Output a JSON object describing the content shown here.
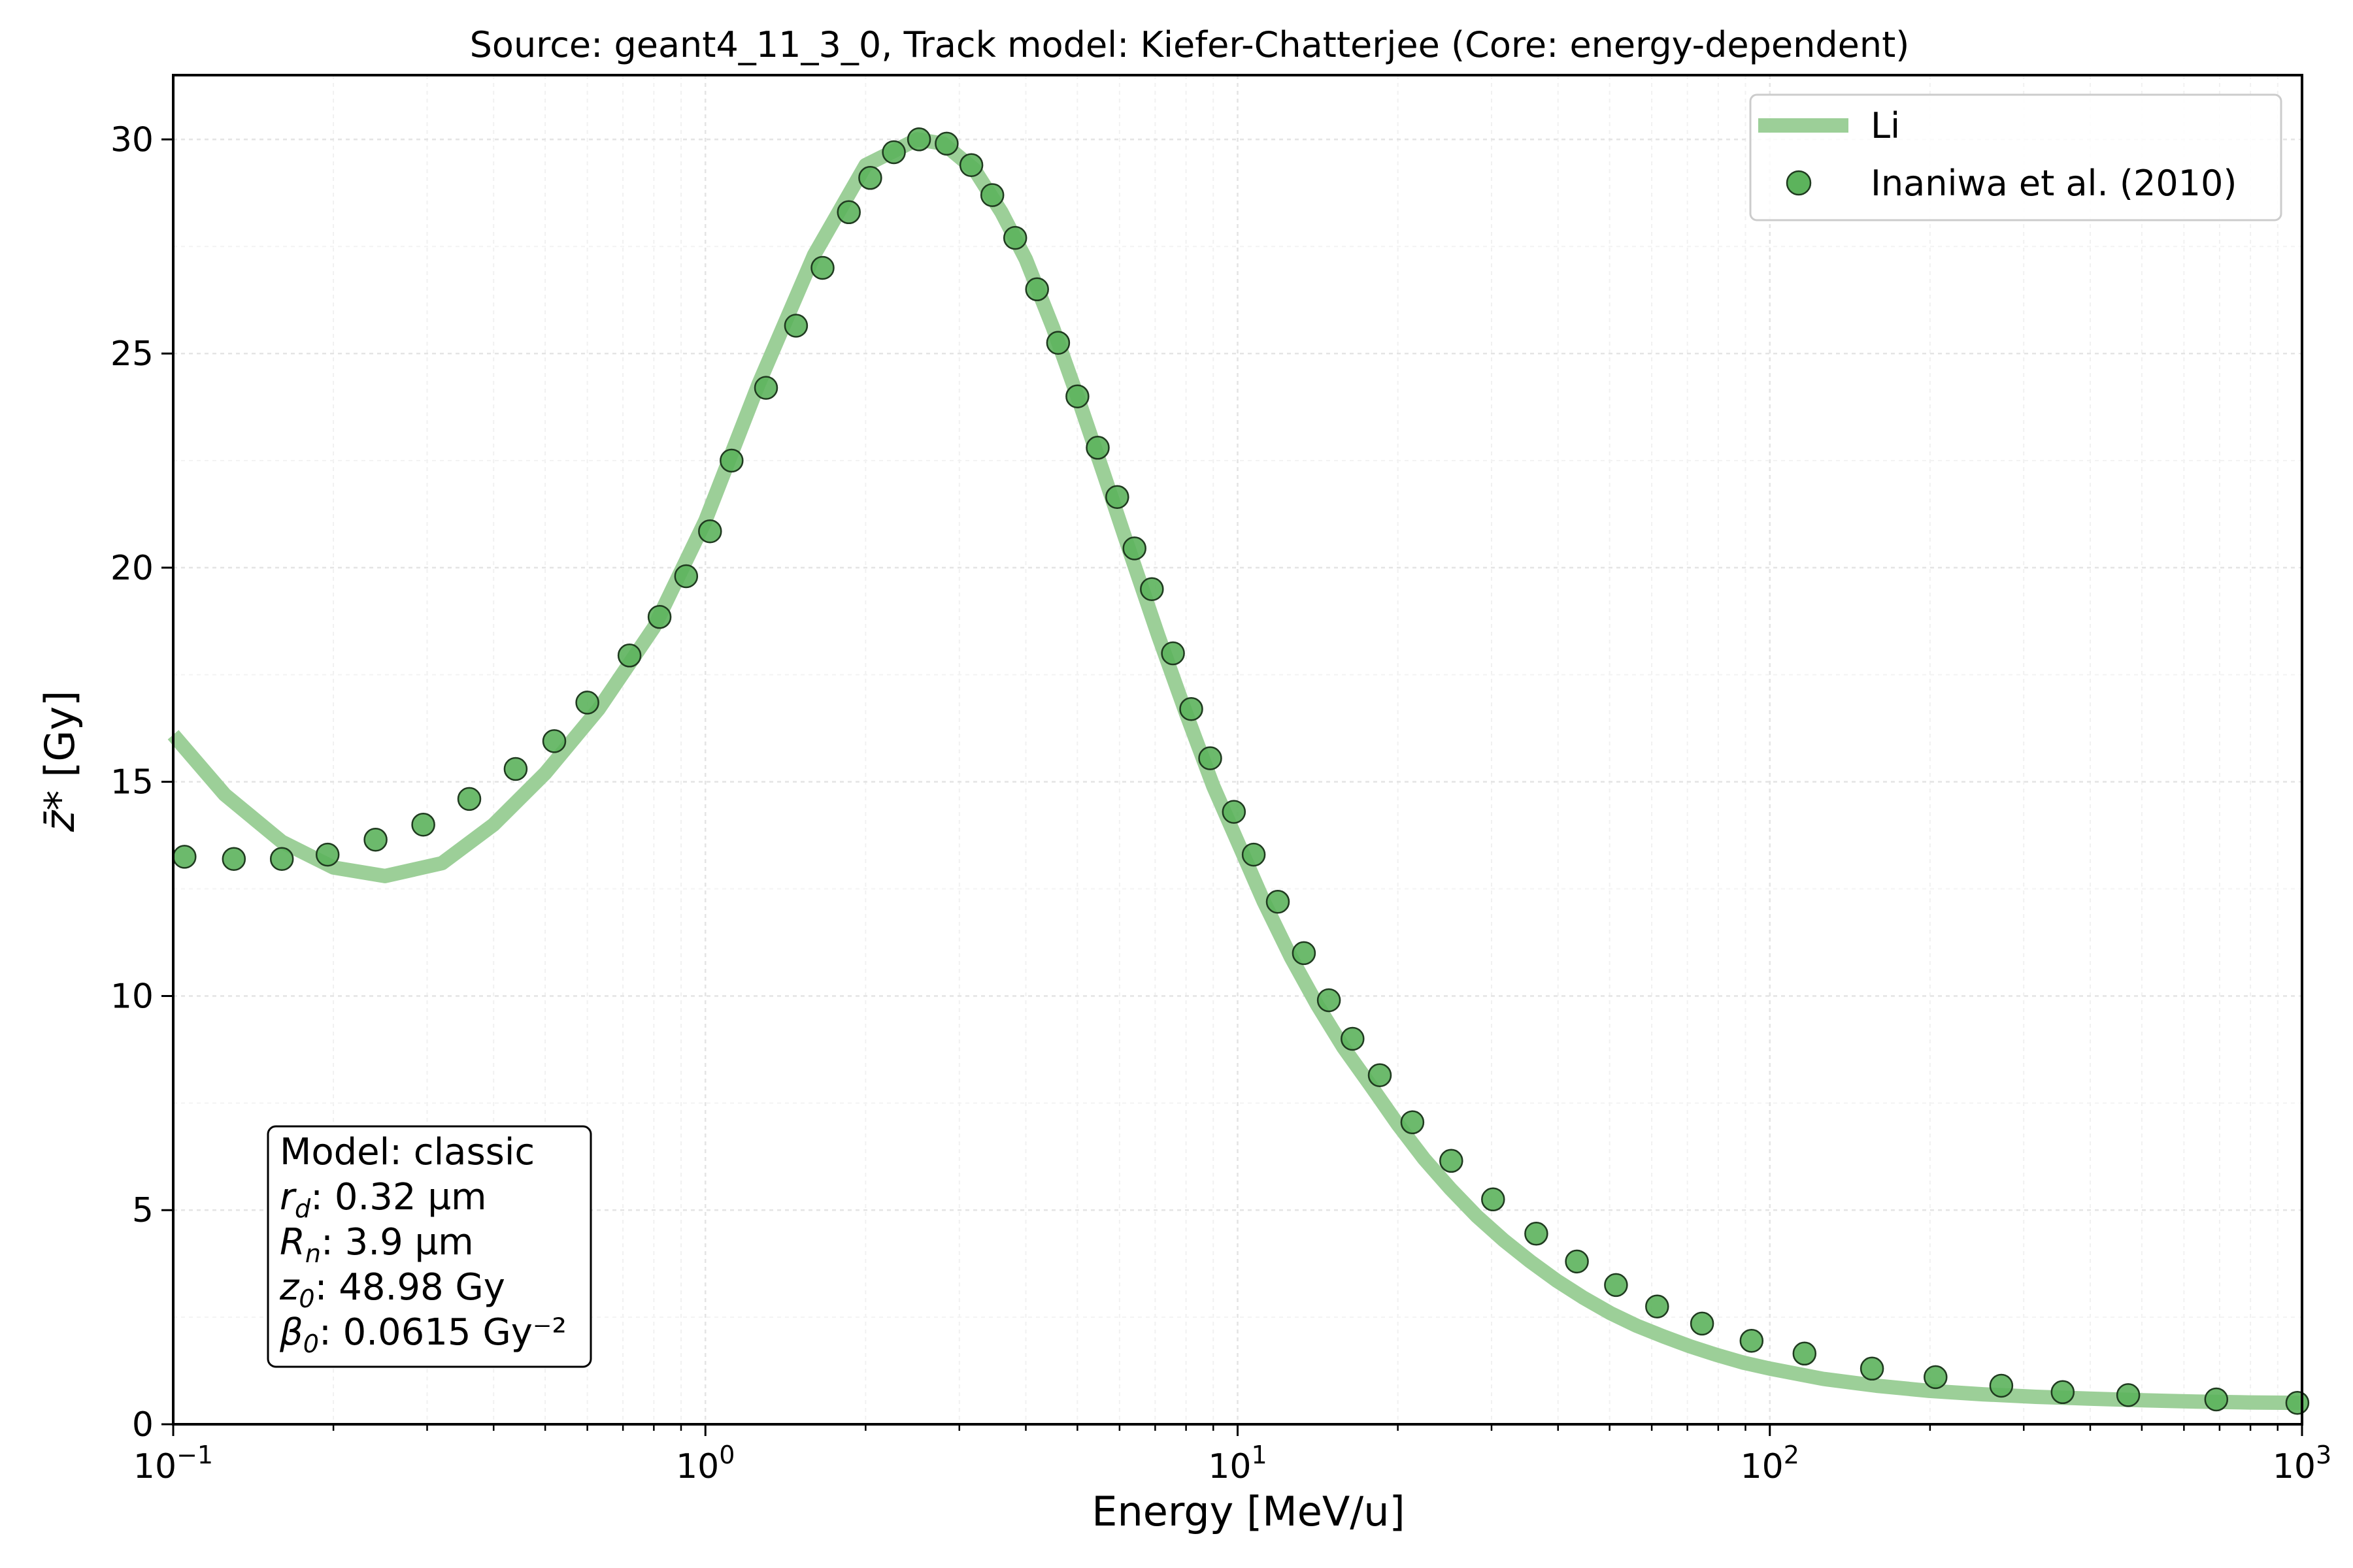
{
  "chart_data": {
    "type": "line",
    "title": "Source: geant4_11_3_0, Track model: Kiefer-Chatterjee (Core: energy-dependent)",
    "xlabel": "Energy [MeV/u]",
    "ylabel_symbol": "z̄*",
    "ylabel_unit": "[Gy]",
    "x_scale": "log",
    "xlim": [
      0.1,
      1000
    ],
    "ylim": [
      0,
      31.5
    ],
    "grid": true,
    "legend_position": "top-right",
    "x_ticks": [
      {
        "value": 0.1,
        "base": "10",
        "exp": "−1"
      },
      {
        "value": 1,
        "base": "10",
        "exp": "0"
      },
      {
        "value": 10,
        "base": "10",
        "exp": "1"
      },
      {
        "value": 100,
        "base": "10",
        "exp": "2"
      },
      {
        "value": 1000,
        "base": "10",
        "exp": "3"
      }
    ],
    "y_ticks": [
      0,
      5,
      10,
      15,
      20,
      25,
      30
    ],
    "colors": {
      "line": "#9ccf98",
      "marker_fill": "#5cb35c",
      "marker_edge": "#1f3a1f"
    },
    "series": [
      {
        "name": "Li",
        "style": "line",
        "x": [
          0.1,
          0.125,
          0.16,
          0.2,
          0.25,
          0.32,
          0.4,
          0.5,
          0.63,
          0.8,
          1.0,
          1.26,
          1.6,
          2.0,
          2.5,
          2.8,
          3.2,
          3.6,
          4.0,
          4.5,
          5.0,
          5.6,
          6.3,
          7.1,
          8.0,
          9.0,
          10.0,
          11.2,
          12.6,
          14.1,
          15.8,
          17.8,
          20,
          22.4,
          25.1,
          28.2,
          31.6,
          35.5,
          39.8,
          44.7,
          50.1,
          56.2,
          63.1,
          70.8,
          79.4,
          89.1,
          100,
          125.9,
          158.5,
          199.5,
          251.2,
          316.2,
          398.1,
          501.2,
          631,
          794.3,
          1000
        ],
        "y": [
          16.1,
          14.7,
          13.6,
          13.0,
          12.8,
          13.1,
          14.0,
          15.2,
          16.7,
          18.6,
          21.1,
          24.3,
          27.3,
          29.4,
          30.0,
          29.9,
          29.3,
          28.3,
          27.2,
          25.6,
          24.0,
          22.2,
          20.3,
          18.4,
          16.6,
          14.9,
          13.6,
          12.2,
          10.9,
          9.8,
          8.8,
          7.9,
          7.0,
          6.2,
          5.5,
          4.85,
          4.3,
          3.8,
          3.35,
          2.95,
          2.6,
          2.3,
          2.05,
          1.82,
          1.62,
          1.44,
          1.3,
          1.06,
          0.9,
          0.78,
          0.7,
          0.64,
          0.6,
          0.56,
          0.53,
          0.51,
          0.5
        ]
      },
      {
        "name": "Inaniwa et al. (2010)",
        "style": "markers",
        "x": [
          0.105,
          0.13,
          0.16,
          0.195,
          0.24,
          0.295,
          0.36,
          0.44,
          0.52,
          0.6,
          0.72,
          0.82,
          0.92,
          1.02,
          1.12,
          1.3,
          1.48,
          1.66,
          1.86,
          2.04,
          2.26,
          2.52,
          2.84,
          3.16,
          3.46,
          3.82,
          4.2,
          4.6,
          5.0,
          5.46,
          5.94,
          6.4,
          6.9,
          7.56,
          8.18,
          8.88,
          9.84,
          10.72,
          11.9,
          13.32,
          14.84,
          16.44,
          18.5,
          21.3,
          25.2,
          30.2,
          36.4,
          43.4,
          51.4,
          61.4,
          74.6,
          92.4,
          116.2,
          155.6,
          204.8,
          272.2,
          355,
          471.4,
          690,
          980
        ],
        "y": [
          13.25,
          13.2,
          13.2,
          13.3,
          13.65,
          14.0,
          14.6,
          15.3,
          15.95,
          16.85,
          17.95,
          18.85,
          19.8,
          20.85,
          22.5,
          24.2,
          25.65,
          27.0,
          28.3,
          29.1,
          29.7,
          30.0,
          29.9,
          29.4,
          28.7,
          27.7,
          26.5,
          25.25,
          24.0,
          22.8,
          21.65,
          20.45,
          19.5,
          18.0,
          16.7,
          15.55,
          14.3,
          13.3,
          12.2,
          11.0,
          9.9,
          9.0,
          8.15,
          7.05,
          6.15,
          5.25,
          4.45,
          3.8,
          3.25,
          2.75,
          2.35,
          1.95,
          1.65,
          1.3,
          1.1,
          0.9,
          0.75,
          0.68,
          0.58,
          0.5
        ]
      }
    ],
    "annotation": [
      {
        "var": "",
        "sub": "",
        "text": "Model: classic"
      },
      {
        "var": "r",
        "sub": "d",
        "text": ": 0.32 µm"
      },
      {
        "var": "R",
        "sub": "n",
        "text": ": 3.9 µm"
      },
      {
        "var": "z",
        "sub": "0",
        "text": ": 48.98 Gy"
      },
      {
        "var": "β",
        "sub": "0",
        "text": ": 0.0615 Gy⁻²"
      }
    ]
  }
}
